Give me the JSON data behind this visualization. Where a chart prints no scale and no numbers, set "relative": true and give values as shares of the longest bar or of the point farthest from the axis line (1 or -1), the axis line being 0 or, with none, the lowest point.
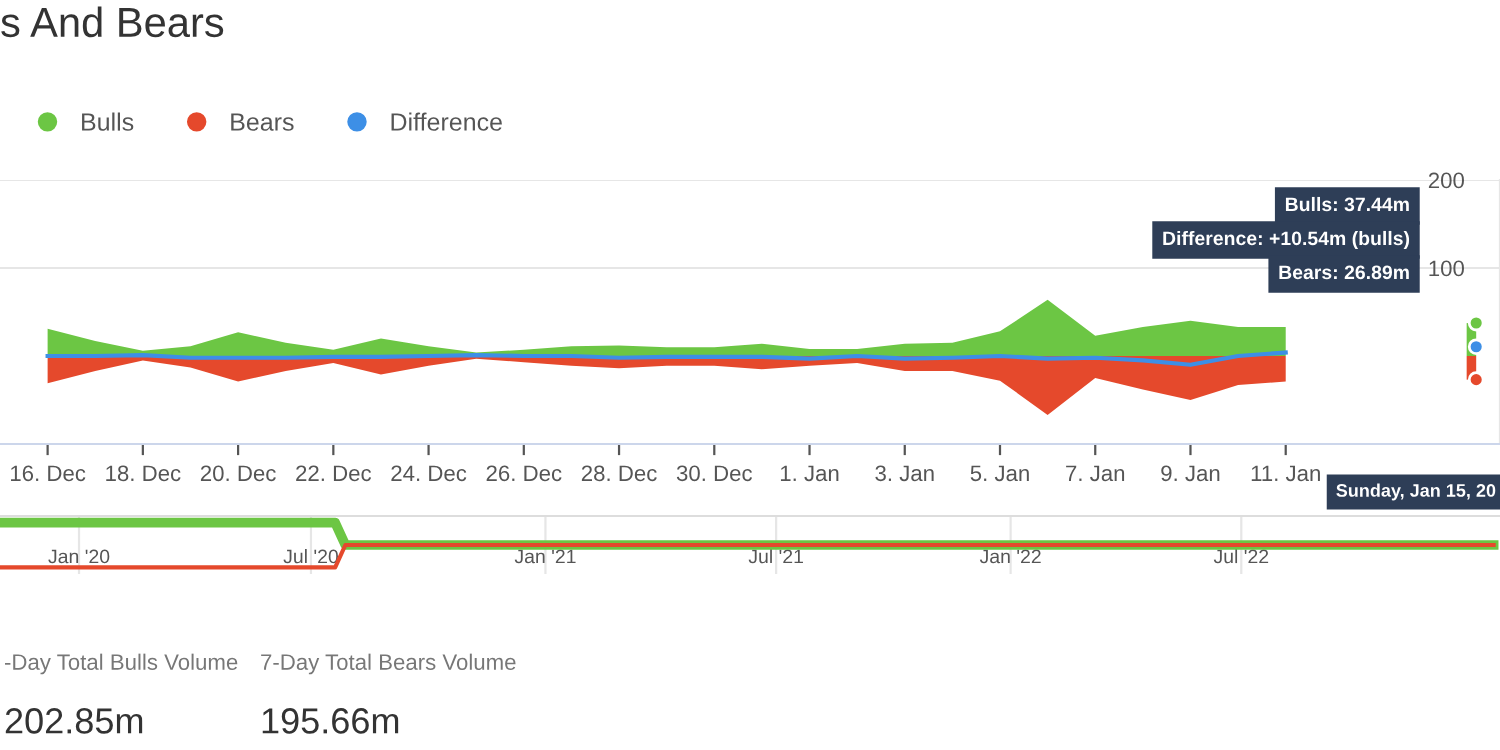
{
  "chart_data": [
    {
      "type": "area",
      "title": "s And Bears",
      "x": [
        "2022-12-16",
        "2022-12-17",
        "2022-12-18",
        "2022-12-19",
        "2022-12-20",
        "2022-12-21",
        "2022-12-22",
        "2022-12-23",
        "2022-12-24",
        "2022-12-25",
        "2022-12-26",
        "2022-12-27",
        "2022-12-28",
        "2022-12-29",
        "2022-12-30",
        "2022-12-31",
        "2023-01-01",
        "2023-01-02",
        "2023-01-03",
        "2023-01-04",
        "2023-01-05",
        "2023-01-06",
        "2023-01-07",
        "2023-01-08",
        "2023-01-09",
        "2023-01-10",
        "2023-01-11",
        "2023-01-12",
        "2023-01-13",
        "2023-01-14",
        "2023-01-15"
      ],
      "series": [
        {
          "name": "Bulls",
          "color": "#6cc644",
          "values": [
            31,
            17,
            6,
            11,
            27,
            15,
            7,
            20,
            11,
            4,
            7,
            11,
            12,
            10,
            10,
            14,
            8,
            8,
            14,
            15,
            28,
            64,
            23,
            33,
            40,
            33,
            33,
            null,
            null,
            null,
            37.44
          ]
        },
        {
          "name": "Bears",
          "color": "#e5492c",
          "values": [
            -31,
            -17,
            -5,
            -13,
            -29,
            -17,
            -8,
            -21,
            -11,
            -3,
            -7,
            -11,
            -14,
            -11,
            -11,
            -15,
            -11,
            -8,
            -17,
            -17,
            -28,
            -67,
            -25,
            -38,
            -50,
            -33,
            -29,
            null,
            null,
            null,
            -26.89
          ]
        },
        {
          "name": "Difference",
          "type": "line",
          "color": "#3d8fe6",
          "values": [
            0,
            0,
            1,
            -2,
            -2,
            -2,
            -1,
            -1,
            0,
            1,
            0,
            0,
            -2,
            -1,
            -1,
            -1,
            -3,
            0,
            -3,
            -2,
            0,
            -3,
            -2,
            -5,
            -10,
            0,
            4,
            null,
            null,
            null,
            10.54
          ]
        }
      ],
      "xlim": [
        "2022-12-15T00:00",
        "2023-01-15T12:00"
      ],
      "xticks": [
        {
          "value": "2022-12-16",
          "label": "16. Dec"
        },
        {
          "value": "2022-12-18",
          "label": "18. Dec"
        },
        {
          "value": "2022-12-20",
          "label": "20. Dec"
        },
        {
          "value": "2022-12-22",
          "label": "22. Dec"
        },
        {
          "value": "2022-12-24",
          "label": "24. Dec"
        },
        {
          "value": "2022-12-26",
          "label": "26. Dec"
        },
        {
          "value": "2022-12-28",
          "label": "28. Dec"
        },
        {
          "value": "2022-12-30",
          "label": "30. Dec"
        },
        {
          "value": "2023-01-01",
          "label": "1. Jan"
        },
        {
          "value": "2023-01-03",
          "label": "3. Jan"
        },
        {
          "value": "2023-01-05",
          "label": "5. Jan"
        },
        {
          "value": "2023-01-07",
          "label": "7. Jan"
        },
        {
          "value": "2023-01-09",
          "label": "9. Jan"
        },
        {
          "value": "2023-01-11",
          "label": "11. Jan"
        }
      ],
      "ylim": [
        -100,
        200
      ],
      "yticks": [
        200,
        100
      ],
      "grid": "y",
      "legend": "top left",
      "annotations": [
        "Bulls: 37.44m",
        "Difference: +10.54m (bulls)",
        "Bears: 26.89m",
        "Sunday, Jan 15, 20",
        "-Day Total Bulls Volume",
        "202.85m",
        "7-Day Total Bears Volume",
        "195.66m"
      ]
    },
    {
      "type": "line",
      "relative": true,
      "tick_labels": "x",
      "x": [
        "2019-10-31",
        "2020-07-20",
        "2020-07-28",
        "2023-01-15"
      ],
      "series": [
        {
          "color": "#6cc644",
          "values": [
            1,
            1,
            0.5,
            0.5
          ]
        },
        {
          "color": "#e5492c",
          "values": [
            0,
            0,
            0.5,
            0.5
          ]
        }
      ],
      "xlim": [
        "2019-10-31",
        "2023-01-20"
      ],
      "xticks": [
        {
          "value": "2020-01-01",
          "label": "Jan '20"
        },
        {
          "value": "2020-07-01",
          "label": "Jul '20"
        },
        {
          "value": "2021-01-01",
          "label": "Jan '21"
        },
        {
          "value": "2021-07-01",
          "label": "Jul '21"
        },
        {
          "value": "2022-01-01",
          "label": "Jan '22"
        },
        {
          "value": "2022-07-01",
          "label": "Jul '22"
        }
      ],
      "grid": "x"
    }
  ]
}
